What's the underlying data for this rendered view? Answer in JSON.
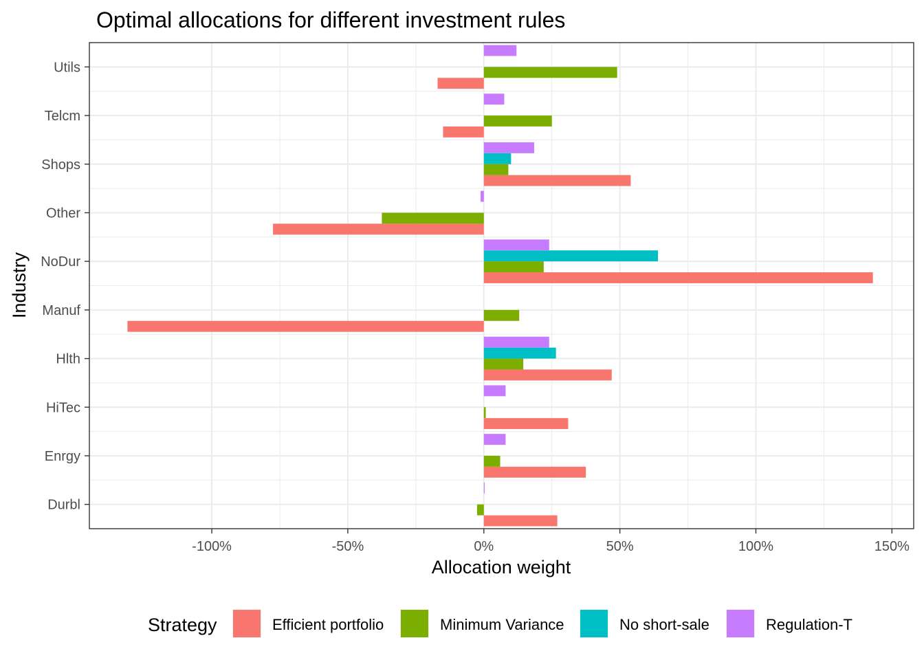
{
  "chart_data": {
    "type": "bar",
    "orientation": "horizontal",
    "title": "Optimal allocations for different investment rules",
    "xlabel": "Allocation weight",
    "ylabel": "Industry",
    "xlim": [
      -145,
      158
    ],
    "x_ticks": [
      -100,
      -50,
      0,
      50,
      100,
      150
    ],
    "x_tick_labels": [
      "-100%",
      "-50%",
      "0%",
      "50%",
      "100%",
      "150%"
    ],
    "grid": true,
    "categories": [
      "Durbl",
      "Enrgy",
      "HiTec",
      "Hlth",
      "Manuf",
      "NoDur",
      "Other",
      "Shops",
      "Telcm",
      "Utils"
    ],
    "series": [
      {
        "name": "Efficient portfolio",
        "color": "#F8766D",
        "values": [
          27,
          37.5,
          31,
          47,
          -131,
          143,
          -77.5,
          54,
          -15,
          -17
        ]
      },
      {
        "name": "Minimum Variance",
        "color": "#7CAE00",
        "values": [
          -2.5,
          6,
          0.7,
          14.5,
          13,
          22,
          -37.5,
          9,
          25,
          49
        ]
      },
      {
        "name": "No short-sale",
        "color": "#00BFC4",
        "values": [
          0,
          0,
          0,
          26.5,
          0,
          64,
          0,
          10,
          0,
          0
        ]
      },
      {
        "name": "Regulation-T",
        "color": "#C77CFF",
        "values": [
          0.3,
          8,
          8,
          24,
          0,
          24,
          -1.2,
          18.5,
          7.5,
          12
        ]
      }
    ],
    "legend": {
      "title": "Strategy",
      "position": "bottom"
    }
  }
}
